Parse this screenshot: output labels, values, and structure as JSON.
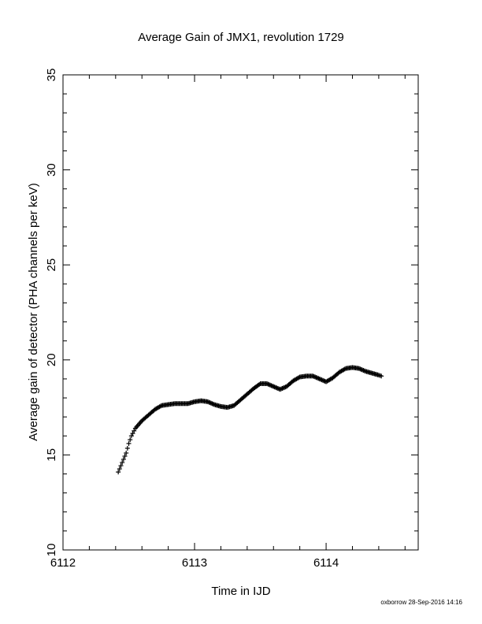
{
  "chart_data": {
    "type": "scatter",
    "title": "Average Gain of JMX1, revolution 1729",
    "xlabel": "Time in IJD",
    "ylabel": "Average gain of detector (PHA channels per keV)",
    "xlim": [
      6112,
      6114.7
    ],
    "ylim": [
      10,
      35
    ],
    "xticks": [
      6112,
      6113,
      6114
    ],
    "xtick_labels": [
      "6112",
      "6113",
      "6114"
    ],
    "yticks": [
      10,
      15,
      20,
      25,
      30,
      35
    ],
    "ytick_labels": [
      "10",
      "15",
      "20",
      "25",
      "30",
      "35"
    ],
    "marker": "+",
    "grid": false,
    "series": [
      {
        "x": [
          6112.42,
          6112.45,
          6112.48,
          6112.5,
          6112.52,
          6112.55,
          6112.6,
          6112.65,
          6112.7,
          6112.75,
          6112.8,
          6112.85,
          6112.9,
          6112.95,
          6113.0,
          6113.05,
          6113.1,
          6113.15,
          6113.2,
          6113.25,
          6113.3,
          6113.35,
          6113.4,
          6113.45,
          6113.5,
          6113.55,
          6113.6,
          6113.65,
          6113.7,
          6113.75,
          6113.8,
          6113.85,
          6113.9,
          6113.95,
          6114.0,
          6114.05,
          6114.1,
          6114.15,
          6114.2,
          6114.25,
          6114.3,
          6114.35,
          6114.4,
          6114.42
        ],
        "y": [
          14.1,
          14.6,
          15.1,
          15.6,
          16.0,
          16.4,
          16.8,
          17.1,
          17.4,
          17.6,
          17.65,
          17.7,
          17.7,
          17.7,
          17.8,
          17.85,
          17.8,
          17.65,
          17.55,
          17.5,
          17.6,
          17.9,
          18.2,
          18.5,
          18.75,
          18.75,
          18.6,
          18.45,
          18.6,
          18.9,
          19.1,
          19.15,
          19.15,
          19.0,
          18.85,
          19.05,
          19.35,
          19.55,
          19.6,
          19.55,
          19.4,
          19.3,
          19.2,
          19.15
        ]
      }
    ]
  },
  "footer": "oxborrow 28-Sep-2016 14:16"
}
